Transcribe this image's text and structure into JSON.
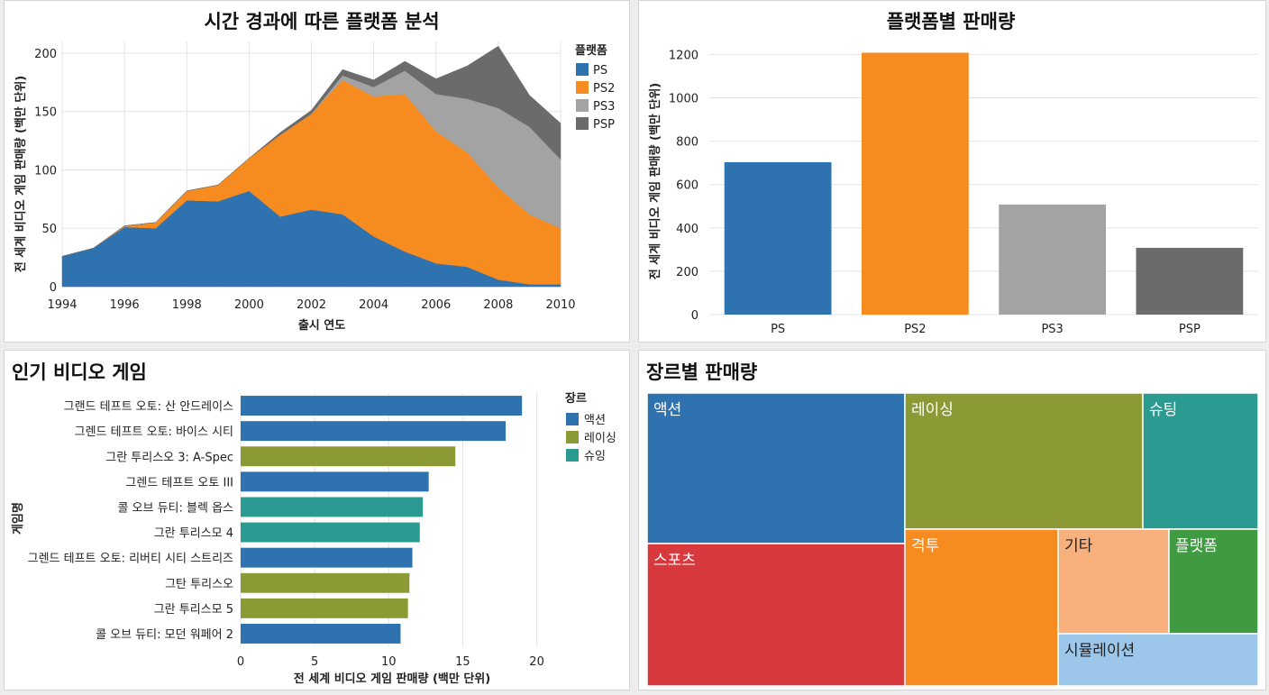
{
  "colors": {
    "PS": "#2f72b0",
    "PS2": "#f68b1f",
    "PS3": "#a3a3a3",
    "PSP": "#6b6b6b",
    "액션": "#2f72b0",
    "레이싱": "#8b9a35",
    "슈팅": "#2b9a91",
    "스포츠": "#d8393d",
    "격투": "#f68b1f",
    "기타": "#f8b07c",
    "플랫폼": "#3f9a41",
    "시뮬레이션": "#9dc7ea"
  },
  "panels": {
    "area": {
      "title": "시간 경과에 따른 플랫폼 분석",
      "xlabel": "출시 연도",
      "ylabel": "전 세계 비디오 게임 판매량 (백만 단위)",
      "legend_title": "플랫폼"
    },
    "bar": {
      "title": "플랫폼별 판매량",
      "ylabel": "전 세계 비디오 게임 판매량 (백만 단위)"
    },
    "hbar": {
      "title": "인기 비디오 게임",
      "xlabel": "전 세계 비디오 게임 판매량 (백만 단위)",
      "ylabel": "게임명",
      "legend_title": "장르"
    },
    "treemap": {
      "title": "장르별 판매량"
    }
  },
  "chart_data": [
    {
      "type": "area",
      "title": "시간 경과에 따른 플랫폼 분석",
      "xlabel": "출시 연도",
      "ylabel": "전 세계 비디오 게임 판매량 (백만 단위)",
      "xlim": [
        1994,
        2010
      ],
      "ylim": [
        0,
        210
      ],
      "xticks": [
        1994,
        1996,
        1998,
        2000,
        2002,
        2004,
        2006,
        2008,
        2010
      ],
      "yticks": [
        0,
        50,
        100,
        150,
        200
      ],
      "legend_title": "플랫폼",
      "legend_position": "top-right",
      "x": [
        1994,
        1995,
        1996,
        1997,
        1998,
        1999,
        2000,
        2001,
        2002,
        2003,
        2004,
        2005,
        2006,
        2007,
        2008,
        2009,
        2010
      ],
      "series": [
        {
          "name": "PS",
          "values": [
            26,
            33,
            51,
            50,
            74,
            73,
            82,
            60,
            66,
            62,
            43,
            30,
            20,
            17,
            6,
            2,
            2
          ]
        },
        {
          "name": "PS2",
          "values": [
            0,
            0,
            1,
            5,
            8,
            14,
            28,
            70,
            82,
            115,
            120,
            135,
            113,
            98,
            79,
            60,
            48
          ]
        },
        {
          "name": "PS3",
          "values": [
            0,
            0,
            0,
            0,
            0,
            0,
            0,
            0,
            0,
            4,
            8,
            20,
            32,
            46,
            68,
            75,
            59
          ]
        },
        {
          "name": "PSP",
          "values": [
            0,
            0,
            0,
            0,
            0,
            0,
            0,
            2,
            3,
            5,
            6,
            8,
            13,
            28,
            53,
            27,
            31
          ]
        }
      ]
    },
    {
      "type": "bar",
      "title": "플랫폼별 판매량",
      "ylabel": "전 세계 비디오 게임 판매량 (백만 단위)",
      "ylim": [
        0,
        1260
      ],
      "yticks": [
        0,
        200,
        400,
        600,
        800,
        1000,
        1200
      ],
      "categories": [
        "PS",
        "PS2",
        "PS3",
        "PSP"
      ],
      "values": [
        703,
        1208,
        508,
        308
      ]
    },
    {
      "type": "bar",
      "orientation": "horizontal",
      "title": "인기 비디오 게임",
      "xlabel": "전 세계 비디오 게임 판매량 (백만 단위)",
      "ylabel": "게임명",
      "xlim": [
        0,
        21
      ],
      "xticks": [
        0,
        5,
        10,
        15,
        20
      ],
      "legend_title": "장르",
      "legend_position": "top-right",
      "legend": [
        "액션",
        "레이싱",
        "슈잉"
      ],
      "categories": [
        "그랜드 테프트 오토: 산 안드레이스",
        "그렌드 테프트 오토: 바이스 시티",
        "그란 투리스오 3: A-Spec",
        "그렌드 테프트 오토 III",
        "콜 오브 듀티: 블렉 옵스",
        "그란 투리스모 4",
        "그렌드 테프트 오토: 리버티 시티 스트리즈",
        "그탄 투리스오",
        "그란 투리스모 5",
        "콜 오브 듀티: 모던 워페어 2"
      ],
      "values": [
        19.0,
        17.9,
        14.5,
        12.7,
        12.3,
        12.1,
        11.6,
        11.4,
        11.3,
        10.8
      ],
      "genres": [
        "액션",
        "액션",
        "레이싱",
        "액션",
        "슈팅",
        "슈팅",
        "액션",
        "레이싱",
        "레이싱",
        "액션"
      ]
    },
    {
      "type": "treemap",
      "title": "장르별 판매량",
      "labels": [
        "액션",
        "레이싱",
        "슈팅",
        "스포츠",
        "격투",
        "기타",
        "플랫폼",
        "시뮬레이션"
      ]
    }
  ]
}
